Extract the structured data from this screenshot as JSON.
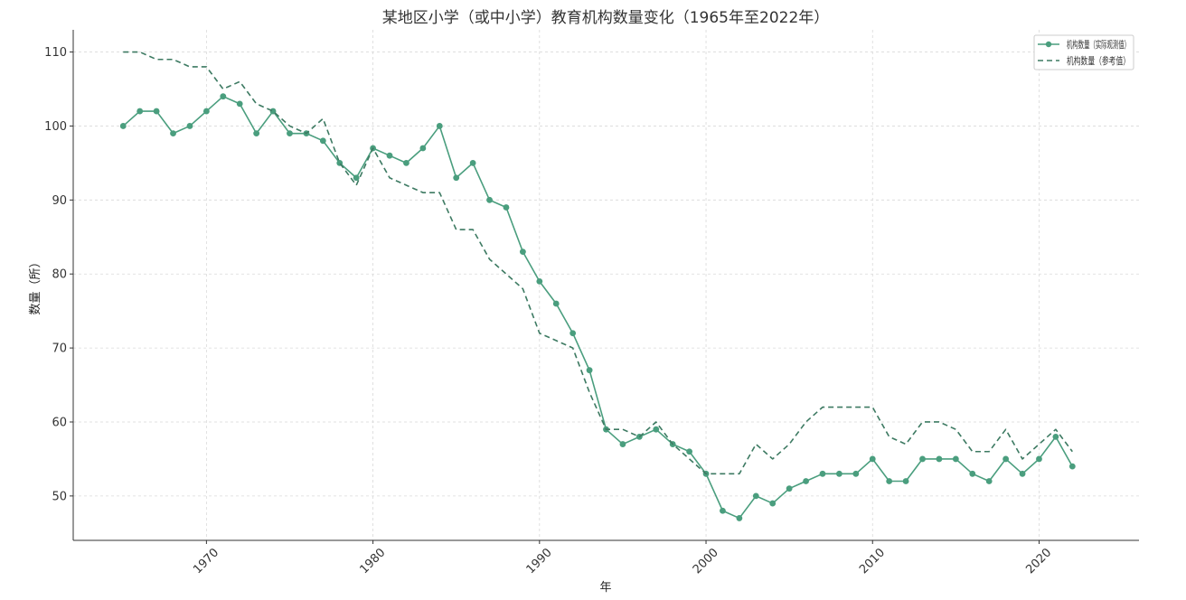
{
  "chart_data": {
    "type": "line",
    "title": "某地区小学（或中小学）教育机构数量变化（1965年至2022年）",
    "xlabel": "年",
    "ylabel": "数量（所）",
    "x": [
      1965,
      1966,
      1967,
      1968,
      1969,
      1970,
      1971,
      1972,
      1973,
      1974,
      1975,
      1976,
      1977,
      1978,
      1979,
      1980,
      1981,
      1982,
      1983,
      1984,
      1985,
      1986,
      1987,
      1988,
      1989,
      1990,
      1991,
      1992,
      1993,
      1994,
      1995,
      1996,
      1997,
      1998,
      1999,
      2000,
      2001,
      2002,
      2003,
      2004,
      2005,
      2006,
      2007,
      2008,
      2009,
      2010,
      2011,
      2012,
      2013,
      2014,
      2015,
      2016,
      2017,
      2018,
      2019,
      2020,
      2021,
      2022
    ],
    "xlim": [
      1962,
      2026
    ],
    "ylim": [
      44,
      113
    ],
    "x_ticks": [
      1970,
      1980,
      1990,
      2000,
      2010,
      2020
    ],
    "y_ticks": [
      50,
      60,
      70,
      80,
      90,
      100,
      110
    ],
    "grid": true,
    "legend_position": "top-right",
    "series": [
      {
        "name": "机构数量（实际观测值）",
        "style": "solid-markers",
        "color": "#4a9e7e",
        "values": [
          100,
          102,
          102,
          99,
          100,
          102,
          104,
          103,
          99,
          102,
          99,
          99,
          98,
          95,
          93,
          97,
          96,
          95,
          97,
          100,
          93,
          95,
          90,
          89,
          83,
          79,
          76,
          72,
          67,
          59,
          57,
          58,
          59,
          57,
          56,
          53,
          48,
          47,
          50,
          49,
          51,
          52,
          53,
          53,
          53,
          55,
          52,
          52,
          55,
          55,
          55,
          53,
          52,
          55,
          53,
          55,
          58,
          54
        ]
      },
      {
        "name": "机构数量（参考值）",
        "style": "dashed",
        "color": "#3d7a62",
        "values": [
          110,
          110,
          109,
          109,
          108,
          108,
          105,
          106,
          103,
          102,
          100,
          99,
          101,
          95,
          92,
          97,
          93,
          92,
          91,
          91,
          86,
          86,
          82,
          80,
          78,
          72,
          71,
          70,
          64,
          59,
          59,
          58,
          60,
          57,
          55,
          53,
          53,
          53,
          57,
          55,
          57,
          60,
          62,
          62,
          62,
          62,
          58,
          57,
          60,
          60,
          59,
          56,
          56,
          59,
          55,
          57,
          59,
          56
        ]
      }
    ]
  }
}
